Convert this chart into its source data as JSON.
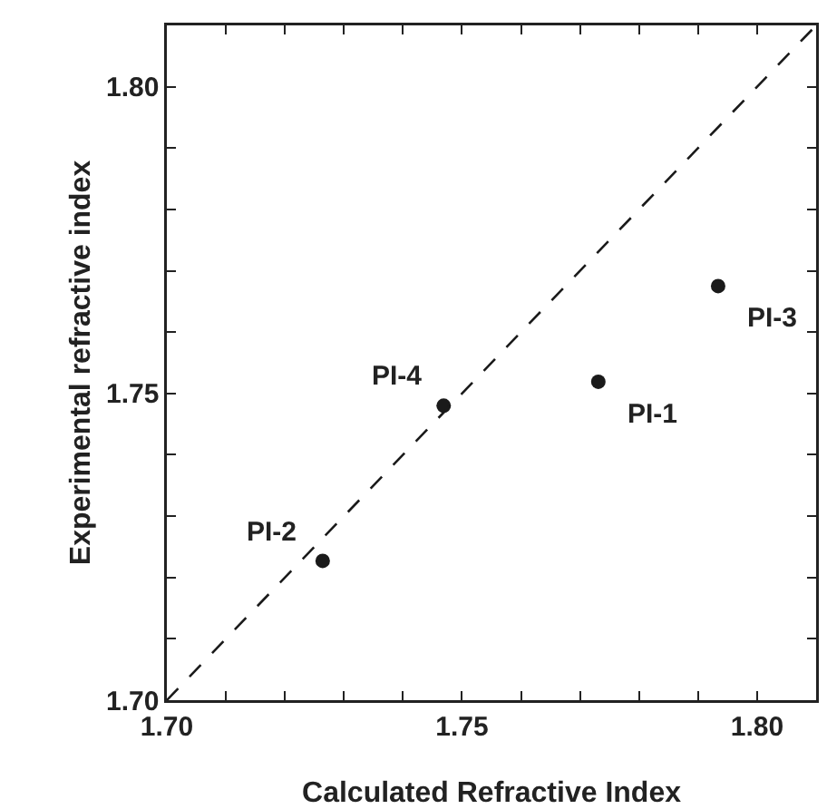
{
  "chart_data": {
    "type": "scatter",
    "xlabel": "Calculated Refractive Index",
    "ylabel": "Experimental refractive index",
    "series": [
      {
        "type": "scatter",
        "color": "#1a1a1a",
        "marker": "circle",
        "x": [
          1.7731,
          1.7264,
          1.7934,
          1.7469
        ],
        "values": [
          1.7519,
          1.7227,
          1.7675,
          1.748
        ]
      },
      {
        "type": "line",
        "color": "#1a1a1a",
        "line_style": "dashed",
        "marker": "none",
        "x": [
          1.7,
          1.81
        ],
        "values": [
          1.7,
          1.81
        ]
      }
    ],
    "annotations": [
      {
        "text": "PI-1",
        "x": 1.7731,
        "y": 1.7519
      },
      {
        "text": "PI-2",
        "x": 1.7264,
        "y": 1.7227
      },
      {
        "text": "PI-3",
        "x": 1.7934,
        "y": 1.7675
      },
      {
        "text": "PI-4",
        "x": 1.7469,
        "y": 1.748
      }
    ],
    "xlim": [
      1.7,
      1.81
    ],
    "ylim": [
      1.7,
      1.81
    ],
    "xticks": [
      {
        "value": 1.7,
        "label": "1.70"
      },
      {
        "value": 1.71,
        "label": null
      },
      {
        "value": 1.72,
        "label": null
      },
      {
        "value": 1.73,
        "label": null
      },
      {
        "value": 1.74,
        "label": null
      },
      {
        "value": 1.75,
        "label": "1.75"
      },
      {
        "value": 1.76,
        "label": null
      },
      {
        "value": 1.77,
        "label": null
      },
      {
        "value": 1.78,
        "label": null
      },
      {
        "value": 1.79,
        "label": null
      },
      {
        "value": 1.8,
        "label": "1.80"
      }
    ],
    "yticks": [
      {
        "value": 1.7,
        "label": "1.70"
      },
      {
        "value": 1.71,
        "label": null
      },
      {
        "value": 1.72,
        "label": null
      },
      {
        "value": 1.73,
        "label": null
      },
      {
        "value": 1.74,
        "label": null
      },
      {
        "value": 1.75,
        "label": "1.75"
      },
      {
        "value": 1.76,
        "label": null
      },
      {
        "value": 1.77,
        "label": null
      },
      {
        "value": 1.78,
        "label": null
      },
      {
        "value": 1.79,
        "label": null
      },
      {
        "value": 1.8,
        "label": "1.80"
      }
    ],
    "grid": false
  }
}
